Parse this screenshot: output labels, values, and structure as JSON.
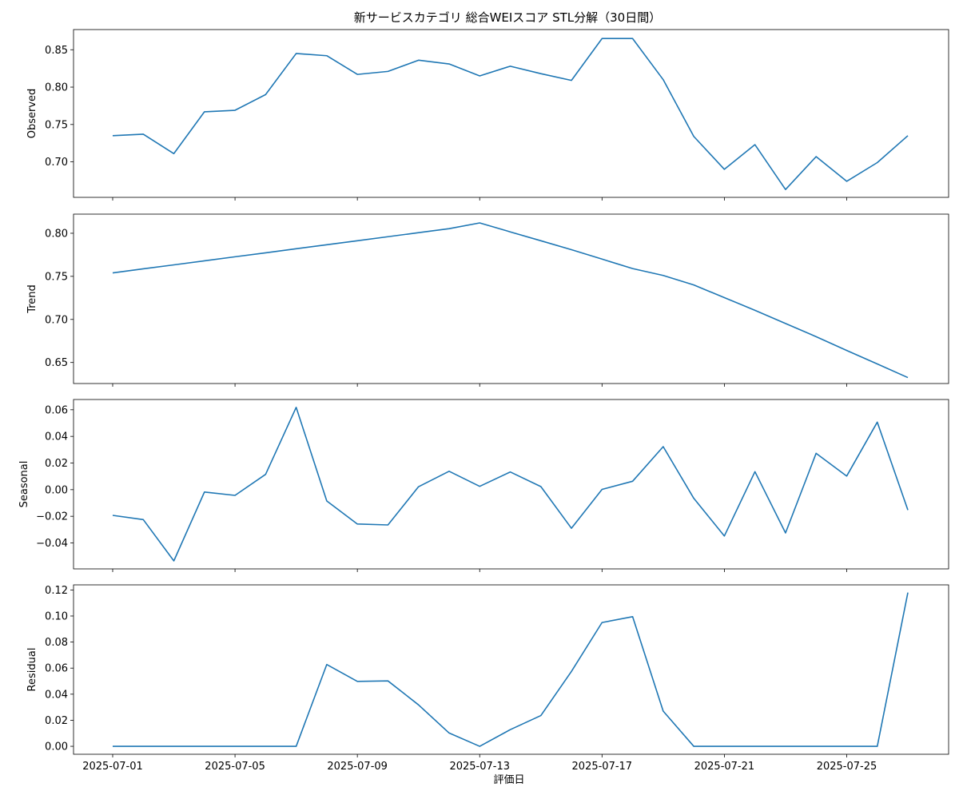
{
  "title": "新サービスカテゴリ 総合WEIスコア STL分解（30日間）",
  "xlabel": "評価日",
  "x_tick_labels": [
    "2025-07-01",
    "2025-07-05",
    "2025-07-09",
    "2025-07-13",
    "2025-07-17",
    "2025-07-21",
    "2025-07-25"
  ],
  "chart_data": {
    "type": "line",
    "title": "新サービスカテゴリ 総合WEIスコア STL分解（30日間）",
    "xlabel": "評価日",
    "x": [
      "2025-07-01",
      "2025-07-02",
      "2025-07-03",
      "2025-07-04",
      "2025-07-05",
      "2025-07-06",
      "2025-07-07",
      "2025-07-08",
      "2025-07-09",
      "2025-07-10",
      "2025-07-11",
      "2025-07-12",
      "2025-07-13",
      "2025-07-14",
      "2025-07-15",
      "2025-07-16",
      "2025-07-17",
      "2025-07-18",
      "2025-07-19",
      "2025-07-20",
      "2025-07-21",
      "2025-07-22",
      "2025-07-23",
      "2025-07-24",
      "2025-07-25",
      "2025-07-26",
      "2025-07-27"
    ],
    "line_color": "#1f77b4",
    "grid": false,
    "panels": [
      {
        "ylabel": "Observed",
        "ylim": [
          0.6525,
          0.877
        ],
        "yticks": [
          0.7,
          0.75,
          0.8,
          0.85
        ],
        "tick_labels": [
          "0.70",
          "0.75",
          "0.80",
          "0.85"
        ],
        "values": [
          0.735,
          0.737,
          0.711,
          0.767,
          0.769,
          0.79,
          0.845,
          0.842,
          0.817,
          0.821,
          0.836,
          0.831,
          0.815,
          0.828,
          0.818,
          0.809,
          0.865,
          0.865,
          0.81,
          0.734,
          0.69,
          0.723,
          0.663,
          0.707,
          0.674,
          0.699,
          0.735
        ]
      },
      {
        "ylabel": "Trend",
        "ylim": [
          0.6256,
          0.8222
        ],
        "yticks": [
          0.65,
          0.7,
          0.75,
          0.8
        ],
        "tick_labels": [
          "0.65",
          "0.70",
          "0.75",
          "0.80"
        ],
        "values": [
          0.754,
          0.7587,
          0.7633,
          0.768,
          0.7727,
          0.7773,
          0.782,
          0.7867,
          0.7913,
          0.796,
          0.8007,
          0.8053,
          0.812,
          0.8016,
          0.7913,
          0.7809,
          0.77,
          0.759,
          0.751,
          0.74,
          0.7253,
          0.7106,
          0.6953,
          0.68,
          0.664,
          0.6483,
          0.6325
        ]
      },
      {
        "ylabel": "Seasonal",
        "ylim": [
          -0.0595,
          0.0677
        ],
        "yticks": [
          -0.04,
          -0.02,
          0.0,
          0.02,
          0.04,
          0.06
        ],
        "tick_labels": [
          "−0.04",
          "−0.02",
          "0.00",
          "0.02",
          "0.04",
          "0.06"
        ],
        "values": [
          -0.0193,
          -0.0225,
          -0.0535,
          -0.0018,
          -0.0043,
          0.0115,
          0.0618,
          -0.0085,
          -0.0258,
          -0.0265,
          0.0022,
          0.0138,
          0.0025,
          0.0133,
          0.0023,
          -0.029,
          0.0002,
          0.0063,
          0.0323,
          -0.0065,
          -0.0348,
          0.0135,
          -0.0325,
          0.0273,
          0.0102,
          0.0507,
          -0.0153
        ]
      },
      {
        "ylabel": "Residual",
        "ylim": [
          -0.0061,
          0.1239
        ],
        "yticks": [
          0.0,
          0.02,
          0.04,
          0.06,
          0.08,
          0.1,
          0.12
        ],
        "tick_labels": [
          "0.00",
          "0.02",
          "0.04",
          "0.06",
          "0.08",
          "0.10",
          "0.12"
        ],
        "values": [
          0,
          0,
          0,
          0,
          0,
          0,
          0,
          0.0628,
          0.0498,
          0.0502,
          0.0318,
          0.0102,
          0,
          0.0128,
          0.0236,
          0.0575,
          0.095,
          0.0995,
          0.027,
          0,
          0,
          0,
          0,
          0,
          0,
          0,
          0.118
        ]
      }
    ]
  }
}
